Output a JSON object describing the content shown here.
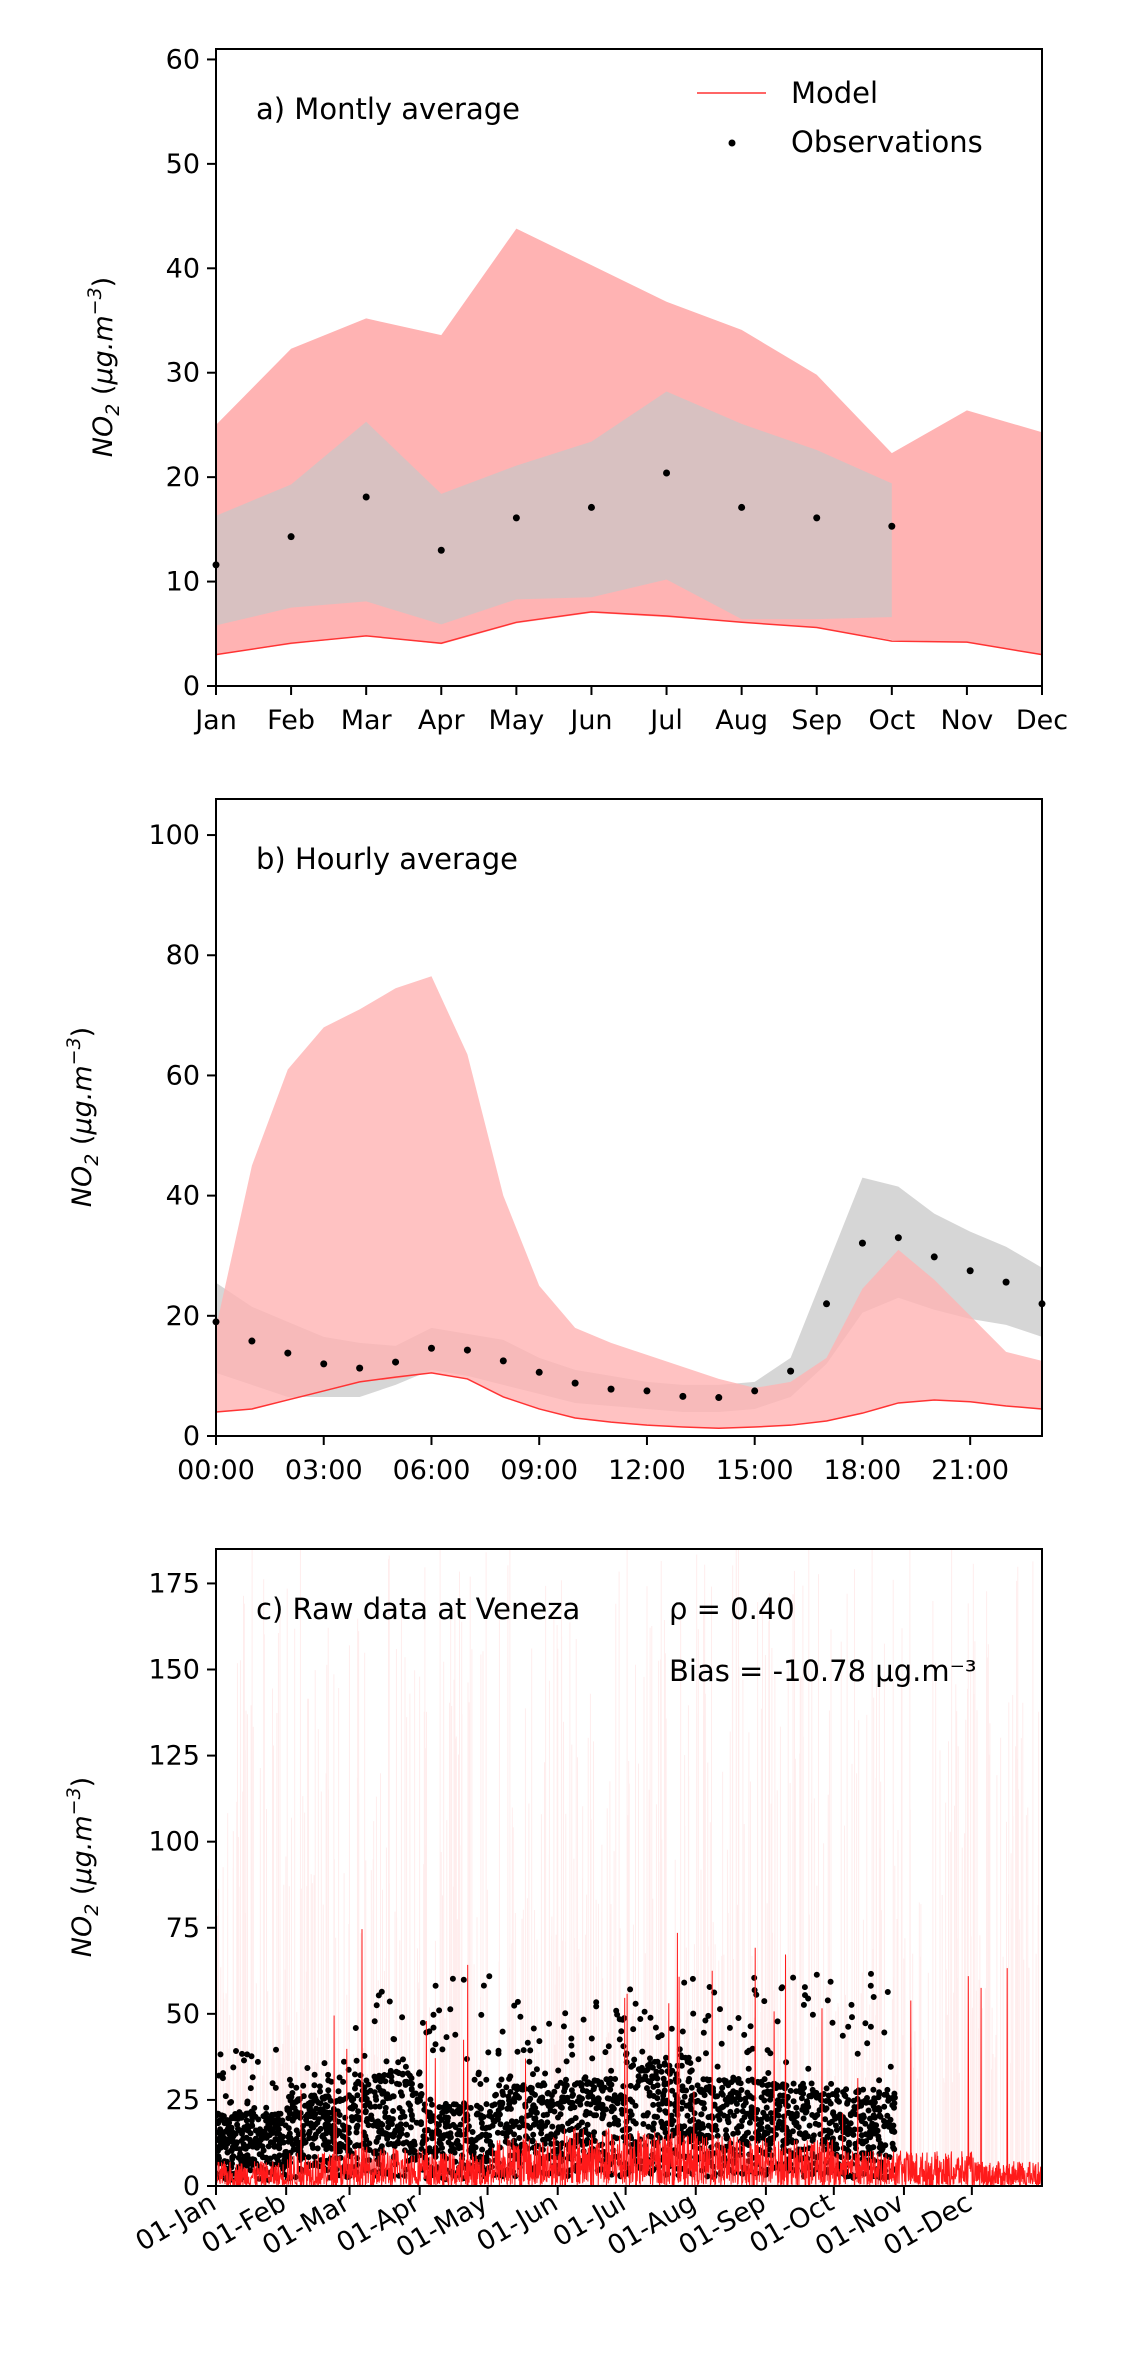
{
  "chart_data": [
    {
      "type": "area",
      "annotation": "a) Montly average",
      "ylabel": "NO₂ (μg.m⁻³)",
      "ylim": [
        0,
        61
      ],
      "yticks": [
        "0",
        "10",
        "20",
        "30",
        "40",
        "50",
        "60"
      ],
      "categories": [
        "Jan",
        "Feb",
        "Mar",
        "Apr",
        "May",
        "Jun",
        "Jul",
        "Aug",
        "Sep",
        "Oct",
        "Nov",
        "Dec"
      ],
      "legend": {
        "placement": "top-right",
        "model": "Model",
        "observations": "Observations"
      },
      "model_band_upper": [
        25,
        32.3,
        35.2,
        33.6,
        43.8,
        40.3,
        36.8,
        34.1,
        29.8,
        22.3,
        26.4,
        24.3
      ],
      "model_band_lower": [
        3,
        4,
        4.8,
        4,
        6,
        7,
        6.6,
        6.1,
        5.6,
        4.4,
        4.2,
        3
      ],
      "model_line": [
        3,
        4.1,
        4.8,
        4.1,
        6.1,
        7.1,
        6.7,
        6.1,
        5.6,
        4.3,
        4.2,
        3
      ],
      "obs_band_upper": [
        16.3,
        19.3,
        25.3,
        18.4,
        21.1,
        23.4,
        28.2,
        25.1,
        22.6,
        19.4
      ],
      "obs_band_lower": [
        5.8,
        7.5,
        8.1,
        5.9,
        8.3,
        8.5,
        10.2,
        6.4,
        6.4,
        6.6
      ],
      "observations": [
        11.6,
        14.3,
        18.1,
        13,
        16.1,
        17.1,
        20.4,
        17.1,
        16.1,
        15.3
      ],
      "colors": {
        "model_band": "#ffb3b3",
        "obs_band": "#c8c8c8",
        "model_line": "#ff3333",
        "obs_point": "#000000"
      }
    },
    {
      "type": "area",
      "annotation": "b) Hourly average",
      "ylabel": "NO₂ (μg.m⁻³)",
      "ylim": [
        0,
        106
      ],
      "yticks": [
        "0",
        "20",
        "40",
        "60",
        "80",
        "100"
      ],
      "xticks": [
        "00:00",
        "03:00",
        "06:00",
        "09:00",
        "12:00",
        "15:00",
        "18:00",
        "21:00"
      ],
      "hours": [
        0,
        1,
        2,
        3,
        4,
        5,
        6,
        7,
        8,
        9,
        10,
        11,
        12,
        13,
        14,
        15,
        16,
        17,
        18,
        19,
        20,
        21,
        22,
        23
      ],
      "model_band_upper": [
        18,
        45,
        61,
        68,
        71,
        74.5,
        76.5,
        63.5,
        40,
        25,
        18,
        15.5,
        13.5,
        11.5,
        9.5,
        8,
        9,
        13,
        24.5,
        31,
        26,
        20,
        14,
        12.5
      ],
      "model_band_lower": [
        4,
        4.5,
        6,
        7.5,
        9,
        9.5,
        10.5,
        9.5,
        6.5,
        4.5,
        3,
        2.3,
        1.8,
        1.5,
        1.3,
        1.5,
        1.8,
        2.5,
        3.8,
        5.5,
        6,
        5.7,
        5,
        4.5
      ],
      "model_line": [
        4,
        4.5,
        6,
        7.5,
        9,
        9.8,
        10.5,
        9.5,
        6.5,
        4.5,
        3,
        2.3,
        1.8,
        1.5,
        1.3,
        1.5,
        1.8,
        2.5,
        3.8,
        5.5,
        6,
        5.7,
        5,
        4.5
      ],
      "obs_band_upper": [
        25.5,
        21.5,
        19,
        16.5,
        15.5,
        15,
        18,
        17,
        16,
        13,
        11,
        10,
        9,
        8.5,
        8.5,
        9,
        13,
        28,
        43,
        41.5,
        37,
        34,
        31.5,
        28
      ],
      "obs_band_lower": [
        10.5,
        8.5,
        6.5,
        6.5,
        6.5,
        8.5,
        11,
        10,
        8.5,
        7,
        5.5,
        5,
        4.5,
        4,
        4,
        4.5,
        6.5,
        12,
        20.5,
        23,
        21,
        19.5,
        18.5,
        16.5
      ],
      "observations": [
        19,
        15.8,
        13.8,
        12,
        11.3,
        12.3,
        14.6,
        14.3,
        12.5,
        10.6,
        8.8,
        7.8,
        7.5,
        6.6,
        6.4,
        7.5,
        10.8,
        22,
        32.1,
        33,
        29.8,
        27.5,
        25.6,
        22
      ],
      "colors": {
        "model_band": "#ffb3b3",
        "obs_band": "#c8c8c8",
        "model_line": "#ff3333",
        "obs_point": "#000000"
      }
    },
    {
      "type": "scatter",
      "annotation": "c) Raw data at Veneza",
      "rho": "ρ = 0.40",
      "bias": "Bias = -10.78 μg.m⁻³",
      "ylabel": "NO₂ (μg.m⁻³)",
      "ylim": [
        0,
        185
      ],
      "yticks": [
        "0",
        "25",
        "50",
        "75",
        "100",
        "125",
        "150",
        "175"
      ],
      "xticks": [
        "01-Jan",
        "01-Feb",
        "01-Mar",
        "01-Apr",
        "01-May",
        "01-Jun",
        "01-Jul",
        "01-Aug",
        "01-Sep",
        "01-Oct",
        "01-Nov",
        "01-Dec"
      ],
      "observation_period_days": [
        0,
        300
      ],
      "model_period_days": [
        0,
        365
      ],
      "monthly_obs_typical": [
        11.6,
        14.3,
        18.1,
        13,
        16.1,
        17.1,
        20.4,
        17.1,
        16.1,
        15.3
      ],
      "monthly_obs_peak": [
        40,
        38,
        57,
        62,
        60,
        55,
        63,
        62,
        62,
        63
      ],
      "monthly_model_typical": [
        3,
        4.1,
        4.8,
        4.1,
        6.1,
        7.1,
        6.7,
        6.1,
        5.6,
        4.3,
        4.2,
        3
      ],
      "colors": {
        "model_line": "#ff1a1a",
        "model_band": "#ffe0e0",
        "obs_point": "#000000"
      }
    }
  ]
}
